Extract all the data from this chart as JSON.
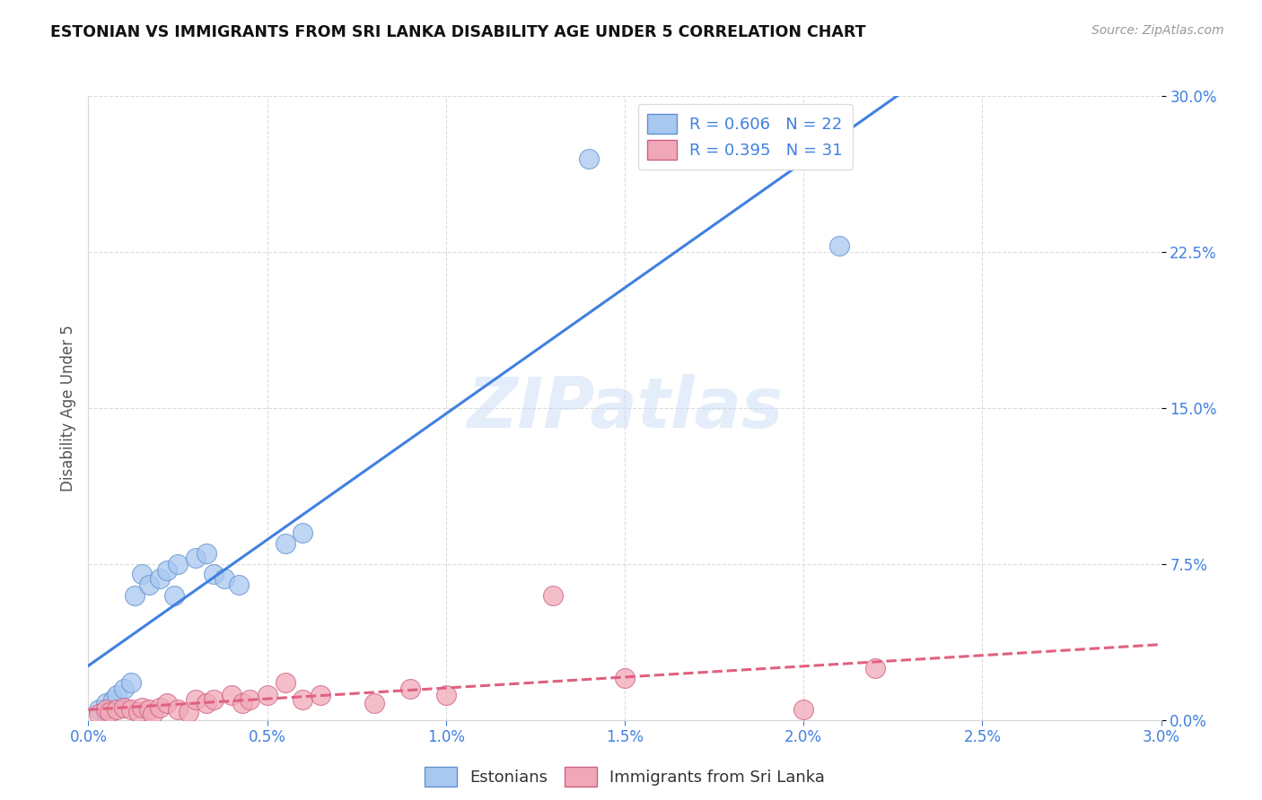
{
  "title": "ESTONIAN VS IMMIGRANTS FROM SRI LANKA DISABILITY AGE UNDER 5 CORRELATION CHART",
  "source": "Source: ZipAtlas.com",
  "ylabel": "Disability Age Under 5",
  "xlim": [
    0.0,
    0.03
  ],
  "ylim": [
    0.0,
    0.3
  ],
  "xtick_labels": [
    "0.0%",
    "0.5%",
    "1.0%",
    "1.5%",
    "2.0%",
    "2.5%",
    "3.0%"
  ],
  "xtick_values": [
    0.0,
    0.005,
    0.01,
    0.015,
    0.02,
    0.025,
    0.03
  ],
  "ytick_labels": [
    "0.0%",
    "7.5%",
    "15.0%",
    "22.5%",
    "30.0%"
  ],
  "ytick_values": [
    0.0,
    0.075,
    0.15,
    0.225,
    0.3
  ],
  "blue_marker_color": "#a8c8f0",
  "blue_marker_edge": "#6090d0",
  "pink_marker_color": "#f0a8b8",
  "pink_marker_edge": "#d06080",
  "blue_line_color": "#4080e0",
  "pink_line_color": "#e06080",
  "tick_color": "#4080e0",
  "legend_r1": "R = 0.606",
  "legend_n1": "N = 22",
  "legend_r2": "R = 0.395",
  "legend_n2": "N = 31",
  "legend_label1": "Estonians",
  "legend_label2": "Immigrants from Sri Lanka",
  "blue_scatter_x": [
    0.0003,
    0.0005,
    0.0007,
    0.0008,
    0.001,
    0.0012,
    0.0013,
    0.0015,
    0.0017,
    0.002,
    0.0022,
    0.0024,
    0.0025,
    0.003,
    0.0033,
    0.0035,
    0.0038,
    0.0042,
    0.0055,
    0.006,
    0.014,
    0.021
  ],
  "blue_scatter_y": [
    0.005,
    0.008,
    0.01,
    0.012,
    0.015,
    0.018,
    0.06,
    0.07,
    0.065,
    0.068,
    0.072,
    0.06,
    0.075,
    0.078,
    0.08,
    0.07,
    0.068,
    0.065,
    0.085,
    0.09,
    0.27,
    0.228
  ],
  "pink_scatter_x": [
    0.0003,
    0.0005,
    0.0006,
    0.0008,
    0.001,
    0.0012,
    0.0014,
    0.0015,
    0.0017,
    0.0018,
    0.002,
    0.0022,
    0.0025,
    0.0028,
    0.003,
    0.0033,
    0.0035,
    0.004,
    0.0043,
    0.0045,
    0.005,
    0.0055,
    0.006,
    0.0065,
    0.008,
    0.009,
    0.01,
    0.013,
    0.015,
    0.02,
    0.022
  ],
  "pink_scatter_y": [
    0.003,
    0.005,
    0.004,
    0.005,
    0.006,
    0.005,
    0.004,
    0.006,
    0.005,
    0.003,
    0.006,
    0.008,
    0.005,
    0.004,
    0.01,
    0.008,
    0.01,
    0.012,
    0.008,
    0.01,
    0.012,
    0.018,
    0.01,
    0.012,
    0.008,
    0.015,
    0.012,
    0.06,
    0.02,
    0.005,
    0.025
  ],
  "background_color": "#ffffff",
  "grid_color": "#d8d8d8"
}
